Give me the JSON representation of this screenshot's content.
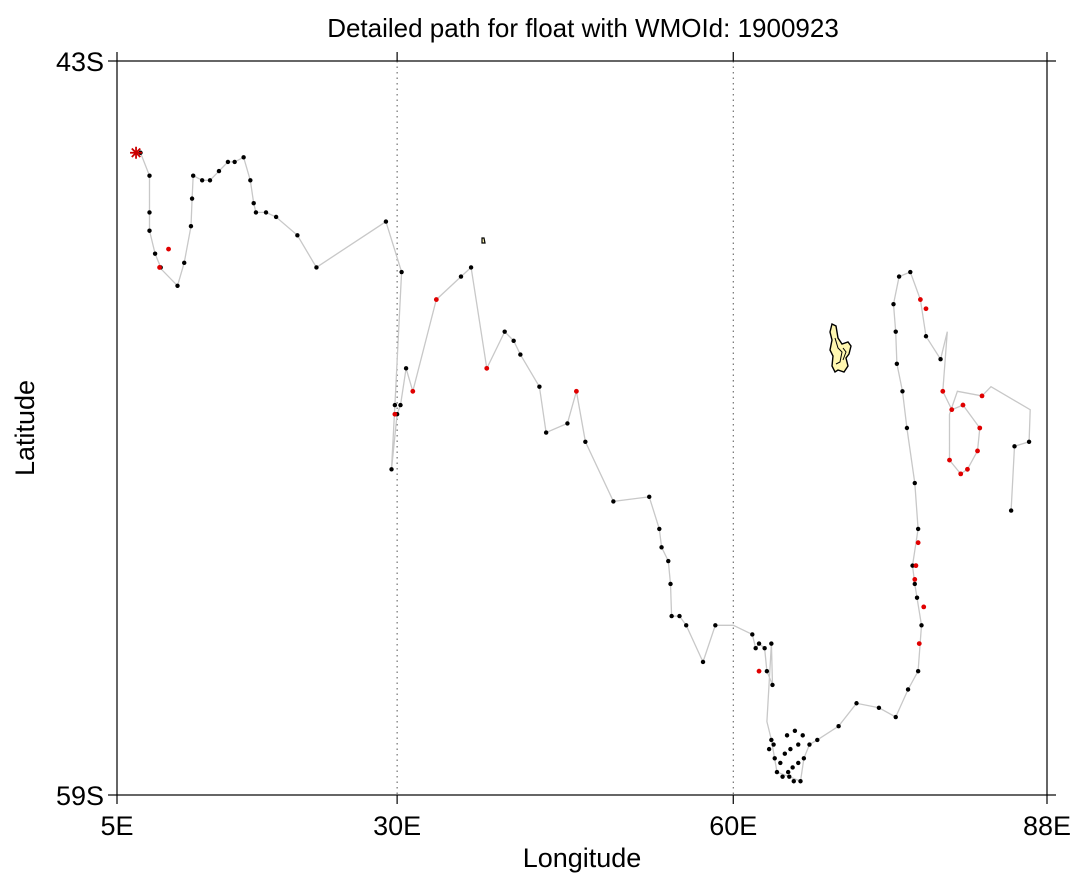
{
  "title": "Detailed path for float with WMOId: 1900923",
  "chart_data": {
    "type": "scatter",
    "title": "Detailed path for float with WMOId: 1900923",
    "xlabel": "Longitude",
    "ylabel": "Latitude",
    "xlim": [
      5,
      88
    ],
    "ylim": [
      -59,
      -43
    ],
    "x_ticks": [
      {
        "value": 5,
        "label": "5E"
      },
      {
        "value": 30,
        "label": "30E"
      },
      {
        "value": 60,
        "label": "60E"
      },
      {
        "value": 88,
        "label": "88E"
      }
    ],
    "y_ticks": [
      {
        "value": -43,
        "label": "43S"
      },
      {
        "value": -59,
        "label": "59S"
      }
    ],
    "gridlines_lon": [
      30,
      60
    ],
    "colors": {
      "profile": "#000000",
      "highlight": "#e00000",
      "start_marker": "#cc0000",
      "track": "#c8c8c8",
      "land_fill": "#fff7b0",
      "land_outline": "#000000"
    },
    "start": [
      6.7,
      -45.0
    ],
    "track": [
      [
        6.7,
        -45.0
      ],
      [
        7.1,
        -45.0
      ],
      [
        7.9,
        -45.5
      ],
      [
        7.9,
        -46.3
      ],
      [
        7.9,
        -46.7
      ],
      [
        8.4,
        -47.2
      ],
      [
        8.9,
        -47.5
      ],
      [
        8.8,
        -47.5
      ],
      [
        10.4,
        -47.9
      ],
      [
        11.0,
        -47.4
      ],
      [
        11.6,
        -46.6
      ],
      [
        11.7,
        -46.0
      ],
      [
        11.8,
        -45.5
      ],
      [
        12.6,
        -45.6
      ],
      [
        13.3,
        -45.6
      ],
      [
        14.1,
        -45.4
      ],
      [
        14.9,
        -45.2
      ],
      [
        15.5,
        -45.2
      ],
      [
        16.3,
        -45.1
      ],
      [
        16.9,
        -45.6
      ],
      [
        17.2,
        -46.1
      ],
      [
        17.4,
        -46.3
      ],
      [
        18.3,
        -46.3
      ],
      [
        19.2,
        -46.4
      ],
      [
        21.1,
        -46.8
      ],
      [
        22.8,
        -47.5
      ],
      [
        29.0,
        -46.5
      ],
      [
        30.4,
        -47.6
      ],
      [
        29.8,
        -50.5
      ],
      [
        29.5,
        -51.9
      ],
      [
        30.0,
        -50.7
      ],
      [
        30.3,
        -50.5
      ],
      [
        30.8,
        -49.7
      ],
      [
        31.4,
        -50.2
      ],
      [
        33.5,
        -48.2
      ],
      [
        35.7,
        -47.7
      ],
      [
        36.6,
        -47.5
      ],
      [
        38.0,
        -49.7
      ],
      [
        39.6,
        -48.9
      ],
      [
        40.4,
        -49.1
      ],
      [
        41.0,
        -49.4
      ],
      [
        42.7,
        -50.1
      ],
      [
        43.3,
        -51.1
      ],
      [
        45.2,
        -50.9
      ],
      [
        46.0,
        -50.2
      ],
      [
        46.8,
        -51.3
      ],
      [
        49.3,
        -52.6
      ],
      [
        52.5,
        -52.5
      ],
      [
        53.4,
        -53.2
      ],
      [
        53.6,
        -53.6
      ],
      [
        54.2,
        -53.9
      ],
      [
        54.4,
        -54.4
      ],
      [
        54.5,
        -55.1
      ],
      [
        55.2,
        -55.1
      ],
      [
        55.8,
        -55.3
      ],
      [
        57.3,
        -56.1
      ],
      [
        58.4,
        -55.3
      ],
      [
        60.0,
        -55.3
      ],
      [
        61.7,
        -55.5
      ],
      [
        62.0,
        -55.8
      ],
      [
        62.3,
        -55.7
      ],
      [
        62.8,
        -55.8
      ],
      [
        63.0,
        -56.3
      ],
      [
        63.5,
        -56.6
      ],
      [
        63.4,
        -55.7
      ],
      [
        63.0,
        -57.4
      ],
      [
        63.4,
        -57.8
      ],
      [
        63.9,
        -58.5
      ],
      [
        65.0,
        -58.6
      ],
      [
        66.0,
        -58.7
      ],
      [
        66.3,
        -58.2
      ],
      [
        66.8,
        -57.9
      ],
      [
        67.5,
        -57.8
      ],
      [
        69.4,
        -57.5
      ],
      [
        71.0,
        -57.0
      ],
      [
        73.0,
        -57.1
      ],
      [
        74.5,
        -57.3
      ],
      [
        75.6,
        -56.7
      ],
      [
        76.5,
        -56.3
      ],
      [
        76.8,
        -55.3
      ],
      [
        76.4,
        -54.7
      ],
      [
        76.2,
        -54.4
      ],
      [
        76.0,
        -54.0
      ],
      [
        76.5,
        -53.2
      ],
      [
        76.2,
        -52.2
      ],
      [
        75.5,
        -51.0
      ],
      [
        75.1,
        -50.2
      ],
      [
        74.6,
        -49.6
      ],
      [
        74.5,
        -48.9
      ],
      [
        74.3,
        -48.3
      ],
      [
        74.8,
        -47.7
      ],
      [
        75.8,
        -47.6
      ],
      [
        76.7,
        -48.2
      ],
      [
        77.2,
        -49.0
      ],
      [
        78.5,
        -49.5
      ],
      [
        79.1,
        -48.9
      ],
      [
        78.7,
        -50.2
      ],
      [
        79.5,
        -50.6
      ],
      [
        80.5,
        -50.5
      ],
      [
        82.0,
        -51.0
      ],
      [
        81.8,
        -51.5
      ],
      [
        80.9,
        -51.9
      ],
      [
        80.3,
        -52.0
      ],
      [
        79.3,
        -51.7
      ],
      [
        79.3,
        -50.7
      ],
      [
        80.0,
        -50.2
      ],
      [
        82.2,
        -50.3
      ],
      [
        83.0,
        -50.1
      ],
      [
        86.5,
        -50.6
      ],
      [
        86.4,
        -51.3
      ],
      [
        85.1,
        -51.4
      ],
      [
        84.8,
        -52.8
      ]
    ],
    "profiles_black": [
      [
        7.1,
        -45.0
      ],
      [
        7.9,
        -45.5
      ],
      [
        7.9,
        -46.3
      ],
      [
        7.9,
        -46.7
      ],
      [
        8.4,
        -47.2
      ],
      [
        8.9,
        -47.5
      ],
      [
        10.4,
        -47.9
      ],
      [
        11.0,
        -47.4
      ],
      [
        11.6,
        -46.6
      ],
      [
        11.7,
        -46.0
      ],
      [
        11.8,
        -45.5
      ],
      [
        12.6,
        -45.6
      ],
      [
        13.3,
        -45.6
      ],
      [
        14.1,
        -45.4
      ],
      [
        14.9,
        -45.2
      ],
      [
        15.5,
        -45.2
      ],
      [
        16.3,
        -45.1
      ],
      [
        16.9,
        -45.6
      ],
      [
        17.2,
        -46.1
      ],
      [
        17.4,
        -46.3
      ],
      [
        18.3,
        -46.3
      ],
      [
        19.2,
        -46.4
      ],
      [
        21.1,
        -46.8
      ],
      [
        22.8,
        -47.5
      ],
      [
        29.0,
        -46.5
      ],
      [
        30.4,
        -47.6
      ],
      [
        29.8,
        -50.5
      ],
      [
        29.5,
        -51.9
      ],
      [
        30.0,
        -50.7
      ],
      [
        30.3,
        -50.5
      ],
      [
        30.8,
        -49.7
      ],
      [
        35.7,
        -47.7
      ],
      [
        36.6,
        -47.5
      ],
      [
        39.6,
        -48.9
      ],
      [
        40.4,
        -49.1
      ],
      [
        41.0,
        -49.4
      ],
      [
        42.7,
        -50.1
      ],
      [
        43.3,
        -51.1
      ],
      [
        45.2,
        -50.9
      ],
      [
        46.8,
        -51.3
      ],
      [
        49.3,
        -52.6
      ],
      [
        52.5,
        -52.5
      ],
      [
        53.4,
        -53.2
      ],
      [
        53.6,
        -53.6
      ],
      [
        54.2,
        -53.9
      ],
      [
        54.4,
        -54.4
      ],
      [
        54.5,
        -55.1
      ],
      [
        55.2,
        -55.1
      ],
      [
        55.8,
        -55.3
      ],
      [
        57.3,
        -56.1
      ],
      [
        58.4,
        -55.3
      ],
      [
        61.7,
        -55.5
      ],
      [
        62.0,
        -55.8
      ],
      [
        62.3,
        -55.7
      ],
      [
        62.8,
        -55.8
      ],
      [
        63.0,
        -56.3
      ],
      [
        63.5,
        -56.6
      ],
      [
        63.4,
        -55.7
      ],
      [
        63.4,
        -57.8
      ],
      [
        63.9,
        -58.5
      ],
      [
        65.0,
        -58.6
      ],
      [
        66.0,
        -58.7
      ],
      [
        66.3,
        -58.2
      ],
      [
        66.8,
        -57.9
      ],
      [
        67.5,
        -57.8
      ],
      [
        69.4,
        -57.5
      ],
      [
        71.0,
        -57.0
      ],
      [
        73.0,
        -57.1
      ],
      [
        74.5,
        -57.3
      ],
      [
        75.6,
        -56.7
      ],
      [
        76.5,
        -56.3
      ],
      [
        76.8,
        -55.3
      ],
      [
        76.4,
        -54.7
      ],
      [
        76.2,
        -54.4
      ],
      [
        76.0,
        -54.0
      ],
      [
        76.5,
        -53.2
      ],
      [
        76.2,
        -52.2
      ],
      [
        75.5,
        -51.0
      ],
      [
        75.1,
        -50.2
      ],
      [
        74.6,
        -49.6
      ],
      [
        74.5,
        -48.9
      ],
      [
        74.3,
        -48.3
      ],
      [
        74.8,
        -47.7
      ],
      [
        75.8,
        -47.6
      ],
      [
        77.2,
        -49.0
      ],
      [
        78.5,
        -49.5
      ],
      [
        84.8,
        -52.8
      ],
      [
        86.4,
        -51.3
      ],
      [
        85.1,
        -51.4
      ],
      [
        63.2,
        -58.0
      ],
      [
        63.6,
        -57.9
      ],
      [
        64.2,
        -58.3
      ],
      [
        64.6,
        -58.1
      ],
      [
        65.3,
        -58.4
      ],
      [
        65.8,
        -58.3
      ],
      [
        65.1,
        -58.0
      ],
      [
        64.8,
        -57.7
      ],
      [
        65.5,
        -57.6
      ],
      [
        65.8,
        -57.9
      ],
      [
        66.2,
        -57.7
      ],
      [
        65.4,
        -58.7
      ],
      [
        64.4,
        -58.6
      ],
      [
        63.7,
        -58.2
      ],
      [
        64.9,
        -58.5
      ]
    ],
    "profiles_red": [
      [
        8.8,
        -47.5
      ],
      [
        9.6,
        -47.1
      ],
      [
        29.8,
        -50.7
      ],
      [
        31.4,
        -50.2
      ],
      [
        33.5,
        -48.2
      ],
      [
        38.0,
        -49.7
      ],
      [
        46.0,
        -50.2
      ],
      [
        62.3,
        -56.3
      ],
      [
        76.7,
        -48.2
      ],
      [
        77.2,
        -48.4
      ],
      [
        79.5,
        -50.6
      ],
      [
        80.5,
        -50.5
      ],
      [
        82.0,
        -51.0
      ],
      [
        82.2,
        -50.3
      ],
      [
        81.8,
        -51.5
      ],
      [
        80.9,
        -51.9
      ],
      [
        80.3,
        -52.0
      ],
      [
        79.3,
        -51.7
      ],
      [
        78.7,
        -50.2
      ],
      [
        76.5,
        -53.5
      ],
      [
        76.3,
        -54.0
      ],
      [
        76.2,
        -54.3
      ],
      [
        76.6,
        -55.7
      ],
      [
        77.0,
        -54.9
      ]
    ]
  }
}
